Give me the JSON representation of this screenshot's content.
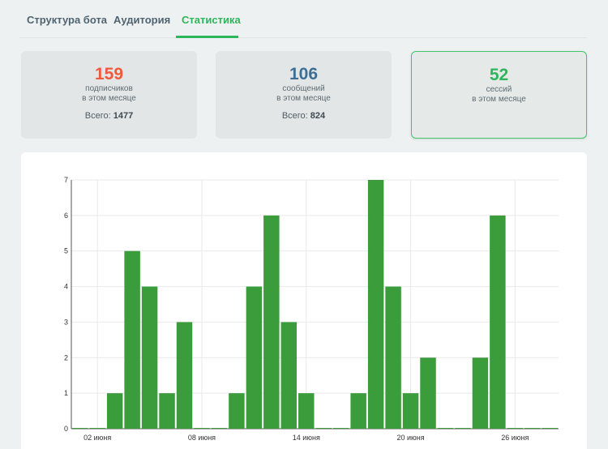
{
  "tabs": [
    {
      "label": "Структура бота"
    },
    {
      "label": "Аудитория"
    },
    {
      "label": "Статистика"
    }
  ],
  "cards": [
    {
      "value": "159",
      "line1": "подписчиков",
      "line2": "в этом месяце",
      "total_label": "Всего:",
      "total_value": "1477",
      "color": "#f05a3c"
    },
    {
      "value": "106",
      "line1": "сообщений",
      "line2": "в этом месяце",
      "total_label": "Всего:",
      "total_value": "824",
      "color": "#3d6e96"
    },
    {
      "value": "52",
      "line1": "сессий",
      "line2": "в этом месяце",
      "color": "#2fb55c"
    }
  ],
  "colors": {
    "accent": "#2fb55c",
    "bar": "#3b9c3b"
  },
  "chart_data": {
    "type": "bar",
    "x_labels": [
      "02 июня",
      "08 июня",
      "14 июня",
      "20 июня",
      "26 июня"
    ],
    "values": [
      0,
      0,
      1,
      5,
      4,
      1,
      3,
      0,
      0,
      1,
      4,
      6,
      3,
      1,
      0,
      0,
      1,
      7,
      4,
      1,
      2,
      0,
      0,
      2,
      6,
      0,
      0,
      0
    ],
    "ylim": [
      0,
      7
    ],
    "yticks": [
      0,
      1,
      2,
      3,
      4,
      5,
      6,
      7
    ],
    "grid": true
  }
}
